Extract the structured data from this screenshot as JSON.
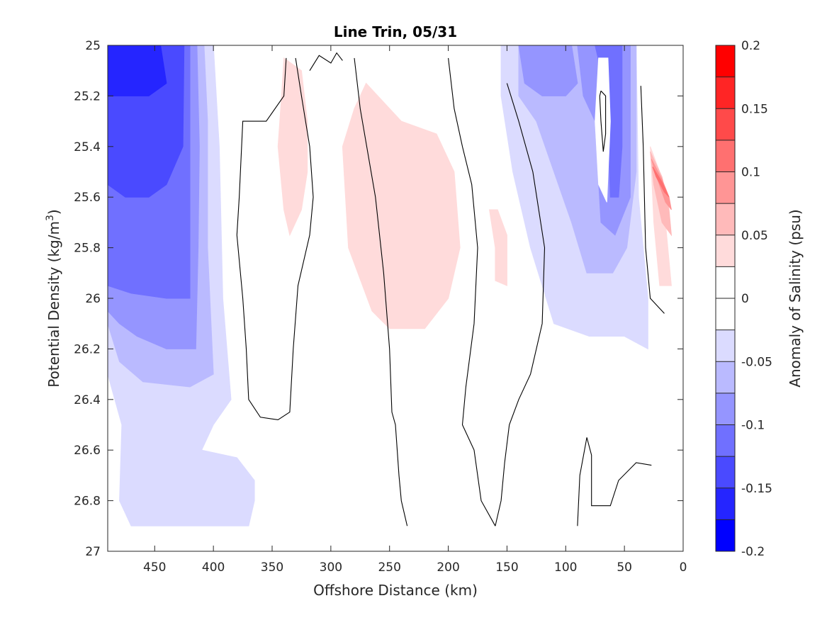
{
  "chart_data": {
    "type": "contour",
    "title": "Line Trin, 05/31",
    "xlabel": "Offshore Distance (km)",
    "ylabel_prefix": "Potential Density (kg/m",
    "ylabel_sup": "3",
    "ylabel_suffix": ")",
    "xlim": [
      490,
      0
    ],
    "ylim": [
      25,
      27
    ],
    "x_reversed": true,
    "y_reversed": true,
    "x_ticks": [
      450,
      400,
      350,
      300,
      250,
      200,
      150,
      100,
      50,
      0
    ],
    "y_ticks": [
      25,
      25.2,
      25.4,
      25.6,
      25.8,
      26,
      26.2,
      26.4,
      26.6,
      26.8,
      27
    ],
    "x_tick_labels": [
      "450",
      "400",
      "350",
      "300",
      "250",
      "200",
      "150",
      "100",
      "50",
      "0"
    ],
    "y_tick_labels": [
      "25",
      "25.2",
      "25.4",
      "25.6",
      "25.8",
      "26",
      "26.2",
      "26.4",
      "26.6",
      "26.8",
      "27"
    ],
    "colorbar": {
      "label": "Anomaly of Salinity (psu)",
      "range": [
        -0.2,
        0.2
      ],
      "ticks": [
        0.2,
        0.15,
        0.1,
        0.05,
        0,
        -0.05,
        -0.1,
        -0.15,
        -0.2
      ],
      "tick_labels": [
        "0.2",
        "0.15",
        "0.1",
        "0.05",
        "0",
        "-0.05",
        "-0.1",
        "-0.15",
        "-0.2"
      ],
      "levels": [
        {
          "lo": 0.175,
          "hi": 0.2,
          "color": "#ff0000"
        },
        {
          "lo": 0.15,
          "hi": 0.175,
          "color": "#ff2525"
        },
        {
          "lo": 0.125,
          "hi": 0.15,
          "color": "#ff4a4a"
        },
        {
          "lo": 0.1,
          "hi": 0.125,
          "color": "#ff7070"
        },
        {
          "lo": 0.075,
          "hi": 0.1,
          "color": "#ff9595"
        },
        {
          "lo": 0.05,
          "hi": 0.075,
          "color": "#ffbaba"
        },
        {
          "lo": 0.025,
          "hi": 0.05,
          "color": "#ffdbdb"
        },
        {
          "lo": 0.0,
          "hi": 0.025,
          "color": "#ffffff"
        },
        {
          "lo": -0.025,
          "hi": 0.0,
          "color": "#ffffff"
        },
        {
          "lo": -0.05,
          "hi": -0.025,
          "color": "#dbdbff"
        },
        {
          "lo": -0.075,
          "hi": -0.05,
          "color": "#babaff"
        },
        {
          "lo": -0.1,
          "hi": -0.075,
          "color": "#9595ff"
        },
        {
          "lo": -0.125,
          "hi": -0.1,
          "color": "#7070ff"
        },
        {
          "lo": -0.15,
          "hi": -0.125,
          "color": "#4a4aff"
        },
        {
          "lo": -0.175,
          "hi": -0.15,
          "color": "#2525ff"
        },
        {
          "lo": -0.2,
          "hi": -0.175,
          "color": "#0000ff"
        }
      ]
    },
    "regions": [
      {
        "name": "offshore-negative-band",
        "value": -0.04,
        "color": "#dbdbff",
        "points": [
          [
            490,
            25
          ],
          [
            400,
            25
          ],
          [
            395,
            25.4
          ],
          [
            392,
            26.0
          ],
          [
            385,
            26.4
          ],
          [
            400,
            26.5
          ],
          [
            410,
            26.6
          ],
          [
            380,
            26.63
          ],
          [
            365,
            26.72
          ],
          [
            365,
            26.8
          ],
          [
            370,
            26.9
          ],
          [
            470,
            26.9
          ],
          [
            480,
            26.8
          ],
          [
            478,
            26.5
          ],
          [
            490,
            26.3
          ]
        ]
      },
      {
        "name": "offshore-minus-0.05",
        "value": -0.06,
        "color": "#babaff",
        "points": [
          [
            490,
            25
          ],
          [
            408,
            25
          ],
          [
            405,
            25.3
          ],
          [
            405,
            25.8
          ],
          [
            402,
            26.1
          ],
          [
            400,
            26.3
          ],
          [
            420,
            26.35
          ],
          [
            460,
            26.33
          ],
          [
            480,
            26.25
          ],
          [
            490,
            26.1
          ]
        ]
      },
      {
        "name": "offshore-minus-0.08",
        "value": -0.085,
        "color": "#9595ff",
        "points": [
          [
            490,
            25
          ],
          [
            414,
            25
          ],
          [
            412,
            25.4
          ],
          [
            413,
            25.8
          ],
          [
            415,
            26.2
          ],
          [
            440,
            26.2
          ],
          [
            465,
            26.15
          ],
          [
            480,
            26.1
          ],
          [
            490,
            26.05
          ]
        ]
      },
      {
        "name": "offshore-minus-0.1",
        "value": -0.11,
        "color": "#7070ff",
        "points": [
          [
            490,
            25
          ],
          [
            420,
            25
          ],
          [
            420,
            25.3
          ],
          [
            420,
            26.0
          ],
          [
            440,
            26.0
          ],
          [
            470,
            25.98
          ],
          [
            490,
            25.95
          ]
        ]
      },
      {
        "name": "offshore-minus-0.13",
        "value": -0.135,
        "color": "#4a4aff",
        "points": [
          [
            490,
            25
          ],
          [
            425,
            25
          ],
          [
            426,
            25.4
          ],
          [
            440,
            25.55
          ],
          [
            455,
            25.6
          ],
          [
            475,
            25.6
          ],
          [
            490,
            25.55
          ]
        ]
      },
      {
        "name": "offshore-minus-0.16",
        "value": -0.17,
        "color": "#2525ff",
        "points": [
          [
            490,
            25
          ],
          [
            445,
            25
          ],
          [
            440,
            25.15
          ],
          [
            455,
            25.2
          ],
          [
            475,
            25.2
          ],
          [
            490,
            25.2
          ]
        ]
      },
      {
        "name": "inshore-negative-band",
        "value": -0.04,
        "color": "#dbdbff",
        "points": [
          [
            155,
            25
          ],
          [
            40,
            25
          ],
          [
            38,
            25.6
          ],
          [
            30,
            26.0
          ],
          [
            30,
            26.2
          ],
          [
            50,
            26.15
          ],
          [
            80,
            26.15
          ],
          [
            110,
            26.1
          ],
          [
            130,
            25.8
          ],
          [
            145,
            25.5
          ],
          [
            155,
            25.2
          ]
        ]
      },
      {
        "name": "inshore-minus-0.05",
        "value": -0.06,
        "color": "#babaff",
        "points": [
          [
            140,
            25
          ],
          [
            40,
            25
          ],
          [
            40,
            25.5
          ],
          [
            48,
            25.8
          ],
          [
            60,
            25.9
          ],
          [
            82,
            25.9
          ],
          [
            95,
            25.7
          ],
          [
            110,
            25.5
          ],
          [
            125,
            25.3
          ],
          [
            140,
            25.2
          ]
        ]
      },
      {
        "name": "inshore-minus-0.08",
        "value": -0.085,
        "color": "#9595ff",
        "points": [
          [
            140,
            25
          ],
          [
            95,
            25
          ],
          [
            90,
            25.15
          ],
          [
            100,
            25.2
          ],
          [
            120,
            25.2
          ],
          [
            135,
            25.15
          ]
        ]
      },
      {
        "name": "inshore-nearshore-minus-0.08",
        "value": -0.085,
        "color": "#9595ff",
        "points": [
          [
            90,
            25
          ],
          [
            45,
            25
          ],
          [
            45,
            25.6
          ],
          [
            58,
            25.75
          ],
          [
            70,
            25.7
          ],
          [
            75,
            25.3
          ],
          [
            85,
            25.2
          ]
        ]
      },
      {
        "name": "inshore-nearshore-minus-0.1",
        "value": -0.11,
        "color": "#7070ff",
        "points": [
          [
            75,
            25
          ],
          [
            52,
            25
          ],
          [
            52,
            25.4
          ],
          [
            55,
            25.6
          ],
          [
            62,
            25.6
          ],
          [
            65,
            25.2
          ]
        ]
      },
      {
        "name": "nearshore-white-pocket",
        "value": 0.0,
        "color": "#ffffff",
        "points": [
          [
            72,
            25.05
          ],
          [
            64,
            25.05
          ],
          [
            62,
            25.3
          ],
          [
            65,
            25.62
          ],
          [
            72,
            25.55
          ],
          [
            75,
            25.3
          ]
        ]
      },
      {
        "name": "mid-positive-patch",
        "value": 0.03,
        "color": "#ffdbdb",
        "points": [
          [
            270,
            25.15
          ],
          [
            240,
            25.3
          ],
          [
            210,
            25.35
          ],
          [
            195,
            25.5
          ],
          [
            190,
            25.8
          ],
          [
            200,
            26.0
          ],
          [
            220,
            26.12
          ],
          [
            250,
            26.12
          ],
          [
            265,
            26.05
          ],
          [
            285,
            25.8
          ],
          [
            290,
            25.4
          ],
          [
            280,
            25.25
          ]
        ]
      },
      {
        "name": "west-positive-patch",
        "value": 0.03,
        "color": "#ffdbdb",
        "points": [
          [
            340,
            25.05
          ],
          [
            325,
            25.1
          ],
          [
            320,
            25.3
          ],
          [
            320,
            25.5
          ],
          [
            325,
            25.65
          ],
          [
            335,
            25.75
          ],
          [
            340,
            25.65
          ],
          [
            345,
            25.4
          ],
          [
            342,
            25.2
          ]
        ]
      },
      {
        "name": "east-positive-patch",
        "value": 0.03,
        "color": "#ffdbdb",
        "points": [
          [
            165,
            25.65
          ],
          [
            160,
            25.8
          ],
          [
            160,
            25.93
          ],
          [
            150,
            25.95
          ],
          [
            150,
            25.75
          ],
          [
            158,
            25.65
          ]
        ]
      },
      {
        "name": "coastal-positive-0.03",
        "value": 0.03,
        "color": "#ffdbdb",
        "points": [
          [
            28,
            25.4
          ],
          [
            20,
            25.5
          ],
          [
            15,
            25.7
          ],
          [
            10,
            25.95
          ],
          [
            20,
            25.95
          ],
          [
            25,
            25.7
          ]
        ]
      },
      {
        "name": "coastal-positive-0.06",
        "value": 0.06,
        "color": "#ffbaba",
        "points": [
          [
            28,
            25.42
          ],
          [
            18,
            25.52
          ],
          [
            12,
            25.65
          ],
          [
            10,
            25.75
          ],
          [
            18,
            25.7
          ],
          [
            25,
            25.55
          ]
        ]
      },
      {
        "name": "coastal-positive-0.1",
        "value": 0.1,
        "color": "#ff9595",
        "points": [
          [
            27,
            25.45
          ],
          [
            18,
            25.53
          ],
          [
            12,
            25.6
          ],
          [
            10,
            25.65
          ],
          [
            15,
            25.62
          ],
          [
            24,
            25.5
          ]
        ]
      },
      {
        "name": "coastal-positive-0.13",
        "value": 0.13,
        "color": "#ff7070",
        "points": [
          [
            26,
            25.48
          ],
          [
            18,
            25.54
          ],
          [
            12,
            25.6
          ],
          [
            16,
            25.58
          ],
          [
            23,
            25.52
          ]
        ]
      }
    ],
    "zero_contours": [
      {
        "name": "zero-contour-west",
        "points": [
          [
            338,
            25.05
          ],
          [
            340,
            25.2
          ],
          [
            355,
            25.3
          ],
          [
            375,
            25.3
          ],
          [
            378,
            25.6
          ],
          [
            380,
            25.75
          ],
          [
            375,
            26.0
          ],
          [
            372,
            26.2
          ],
          [
            370,
            26.4
          ],
          [
            360,
            26.47
          ],
          [
            345,
            26.48
          ],
          [
            335,
            26.45
          ],
          [
            332,
            26.2
          ],
          [
            328,
            25.95
          ],
          [
            318,
            25.75
          ],
          [
            315,
            25.6
          ],
          [
            318,
            25.4
          ],
          [
            325,
            25.2
          ],
          [
            330,
            25.05
          ]
        ]
      },
      {
        "name": "zero-contour-central",
        "points": [
          [
            280,
            25.05
          ],
          [
            275,
            25.25
          ],
          [
            262,
            25.6
          ],
          [
            255,
            25.9
          ],
          [
            250,
            26.2
          ],
          [
            248,
            26.45
          ],
          [
            245,
            26.5
          ],
          [
            242,
            26.7
          ],
          [
            240,
            26.8
          ],
          [
            235,
            26.9
          ]
        ]
      },
      {
        "name": "zero-contour-central-east",
        "points": [
          [
            200,
            25.05
          ],
          [
            195,
            25.25
          ],
          [
            188,
            25.4
          ],
          [
            180,
            25.55
          ],
          [
            175,
            25.8
          ],
          [
            178,
            26.1
          ],
          [
            185,
            26.35
          ],
          [
            188,
            26.5
          ],
          [
            178,
            26.6
          ],
          [
            172,
            26.8
          ],
          [
            160,
            26.9
          ]
        ]
      },
      {
        "name": "zero-contour-east",
        "points": [
          [
            150,
            25.15
          ],
          [
            140,
            25.3
          ],
          [
            128,
            25.5
          ],
          [
            118,
            25.8
          ],
          [
            120,
            26.1
          ],
          [
            130,
            26.3
          ],
          [
            140,
            26.4
          ],
          [
            148,
            26.5
          ],
          [
            152,
            26.65
          ],
          [
            155,
            26.8
          ],
          [
            160,
            26.9
          ]
        ]
      },
      {
        "name": "zero-contour-top-left",
        "points": [
          [
            318,
            25.1
          ],
          [
            310,
            25.04
          ],
          [
            300,
            25.07
          ],
          [
            295,
            25.03
          ],
          [
            290,
            25.06
          ]
        ]
      },
      {
        "name": "zero-contour-bottom-right",
        "points": [
          [
            90,
            26.9
          ],
          [
            88,
            26.7
          ],
          [
            82,
            26.55
          ],
          [
            78,
            26.62
          ],
          [
            78,
            26.82
          ],
          [
            62,
            26.82
          ],
          [
            55,
            26.72
          ],
          [
            40,
            26.65
          ],
          [
            27,
            26.66
          ]
        ]
      },
      {
        "name": "zero-contour-nearshore-loop",
        "points": [
          [
            70,
            25.18
          ],
          [
            66,
            25.2
          ],
          [
            66,
            25.35
          ],
          [
            68,
            25.42
          ],
          [
            70,
            25.3
          ],
          [
            71,
            25.2
          ],
          [
            70,
            25.18
          ]
        ]
      },
      {
        "name": "zero-contour-coastal",
        "points": [
          [
            36,
            25.16
          ],
          [
            34,
            25.4
          ],
          [
            32,
            25.8
          ],
          [
            28,
            26.0
          ],
          [
            16,
            26.06
          ]
        ]
      }
    ]
  }
}
